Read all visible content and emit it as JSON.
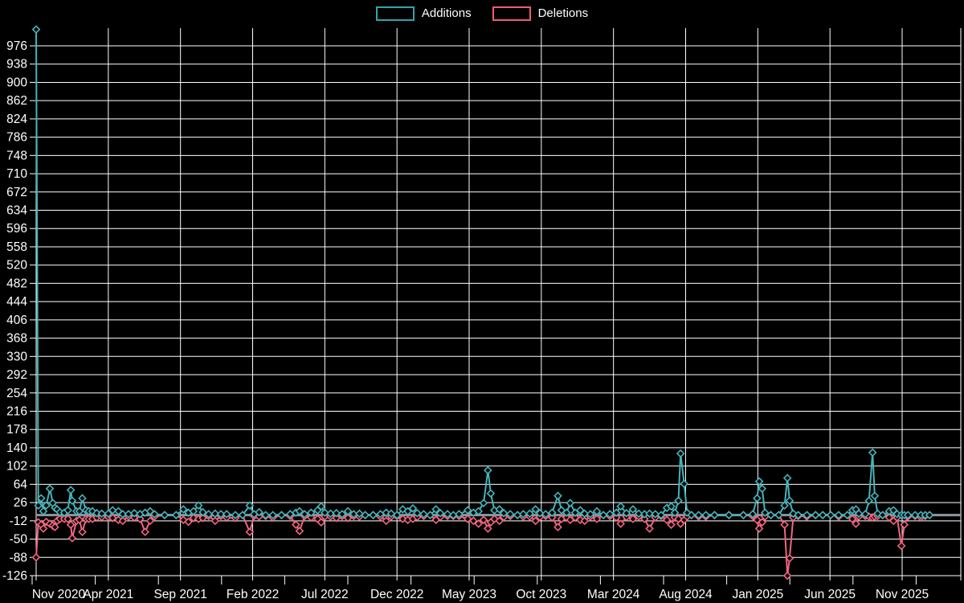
{
  "legend": {
    "items": [
      {
        "label": "Additions",
        "color": "#2fa6ac"
      },
      {
        "label": "Deletions",
        "color": "#ee5b74"
      }
    ]
  },
  "chart_data": {
    "type": "line",
    "title": "",
    "legend_position": "top-center",
    "grid": true,
    "background": "#000000",
    "grid_color": "#ffffff",
    "axis_color": "#8a98a3",
    "text_color": "#ffffff",
    "series": [
      {
        "name": "Additions",
        "color": "#45b4ba",
        "marker": "diamond"
      },
      {
        "name": "Deletions",
        "color": "#f1657f",
        "marker": "diamond"
      }
    ],
    "y_ticks": [
      976,
      938,
      900,
      862,
      824,
      786,
      748,
      710,
      672,
      634,
      596,
      558,
      520,
      482,
      444,
      406,
      368,
      330,
      292,
      254,
      216,
      178,
      140,
      102,
      64,
      26,
      -12,
      -50,
      -88,
      -126
    ],
    "ylim": [
      -145,
      1013
    ],
    "x_ticks": [
      {
        "label": "Nov 2020",
        "m": 0
      },
      {
        "label": "Apr 2021",
        "m": 5
      },
      {
        "label": "Sep 2021",
        "m": 10
      },
      {
        "label": "Feb 2022",
        "m": 15
      },
      {
        "label": "Jul 2022",
        "m": 20
      },
      {
        "label": "Dec 2022",
        "m": 25
      },
      {
        "label": "May 2023",
        "m": 30
      },
      {
        "label": "Oct 2023",
        "m": 35
      },
      {
        "label": "Mar 2024",
        "m": 40
      },
      {
        "label": "Aug 2024",
        "m": 45
      },
      {
        "label": "Jan 2025",
        "m": 50
      },
      {
        "label": "Jun 2025",
        "m": 55
      },
      {
        "label": "Nov 2025",
        "m": 60
      }
    ],
    "points_format": [
      "months_since_nov_2020",
      "additions",
      "deletions"
    ],
    "points": [
      [
        0,
        1010,
        -88
      ],
      [
        0.15,
        20,
        -15
      ],
      [
        0.35,
        35,
        -20
      ],
      [
        0.5,
        8,
        -28
      ],
      [
        0.7,
        20,
        -14
      ],
      [
        0.95,
        55,
        -18
      ],
      [
        1.15,
        25,
        -22
      ],
      [
        1.3,
        15,
        -25
      ],
      [
        1.45,
        12,
        -12
      ],
      [
        1.65,
        6,
        -8
      ],
      [
        1.95,
        5,
        -8
      ],
      [
        2.2,
        10,
        -8
      ],
      [
        2.4,
        52,
        -20
      ],
      [
        2.5,
        30,
        -48
      ],
      [
        2.8,
        8,
        -12
      ],
      [
        3.0,
        8,
        -10
      ],
      [
        3.2,
        35,
        -35
      ],
      [
        3.45,
        10,
        -8
      ],
      [
        3.65,
        8,
        -8
      ],
      [
        3.9,
        8,
        -8
      ],
      [
        4.2,
        4,
        -5
      ],
      [
        4.55,
        3,
        -4
      ],
      [
        5.0,
        3,
        -4
      ],
      [
        5.3,
        10,
        -6
      ],
      [
        5.7,
        8,
        -10
      ],
      [
        6.0,
        2,
        -12
      ],
      [
        6.4,
        2,
        -3
      ],
      [
        6.8,
        4,
        -5
      ],
      [
        7.2,
        2,
        -8
      ],
      [
        7.55,
        5,
        -35
      ],
      [
        7.9,
        8,
        -12
      ],
      [
        8.2,
        2,
        -3
      ],
      [
        8.9,
        0,
        0
      ],
      [
        9.7,
        0,
        0
      ],
      [
        10.2,
        12,
        -10
      ],
      [
        10.55,
        5,
        -14
      ],
      [
        10.9,
        8,
        -6
      ],
      [
        11.25,
        20,
        -8
      ],
      [
        11.55,
        6,
        -6
      ],
      [
        11.95,
        2,
        -2
      ],
      [
        12.4,
        3,
        -12
      ],
      [
        12.8,
        2,
        -2
      ],
      [
        13.2,
        2,
        -5
      ],
      [
        13.8,
        0,
        -6
      ],
      [
        14.3,
        0,
        0
      ],
      [
        14.8,
        20,
        -35
      ],
      [
        15.1,
        2,
        -2
      ],
      [
        15.45,
        6,
        -3
      ],
      [
        15.9,
        0,
        -2
      ],
      [
        16.4,
        0,
        -5
      ],
      [
        17.0,
        0,
        0
      ],
      [
        17.6,
        2,
        -2
      ],
      [
        18.0,
        5,
        -20
      ],
      [
        18.25,
        8,
        -33
      ],
      [
        18.6,
        2,
        -2
      ],
      [
        19.05,
        5,
        -5
      ],
      [
        19.5,
        10,
        -8
      ],
      [
        19.75,
        18,
        -15
      ],
      [
        20.0,
        5,
        -3
      ],
      [
        20.4,
        3,
        -3
      ],
      [
        20.8,
        4,
        -6
      ],
      [
        21.2,
        2,
        -2
      ],
      [
        21.6,
        8,
        -6
      ],
      [
        22.0,
        2,
        -2
      ],
      [
        22.4,
        3,
        -3
      ],
      [
        22.8,
        0,
        0
      ],
      [
        23.35,
        0,
        0
      ],
      [
        23.85,
        2,
        -3
      ],
      [
        24.25,
        5,
        -12
      ],
      [
        24.6,
        3,
        -3
      ],
      [
        25.0,
        0,
        -2
      ],
      [
        25.4,
        12,
        -8
      ],
      [
        25.75,
        8,
        -10
      ],
      [
        26.1,
        14,
        -8
      ],
      [
        26.4,
        4,
        -4
      ],
      [
        26.85,
        2,
        -2
      ],
      [
        27.3,
        0,
        0
      ],
      [
        27.7,
        12,
        -10
      ],
      [
        28.0,
        4,
        -4
      ],
      [
        28.5,
        2,
        -2
      ],
      [
        28.9,
        0,
        -2
      ],
      [
        29.3,
        2,
        -2
      ],
      [
        29.9,
        10,
        -8
      ],
      [
        30.3,
        5,
        -12
      ],
      [
        30.65,
        8,
        -18
      ],
      [
        31.0,
        25,
        -10
      ],
      [
        31.3,
        93,
        -28
      ],
      [
        31.5,
        45,
        -15
      ],
      [
        31.75,
        10,
        -8
      ],
      [
        32.1,
        12,
        -12
      ],
      [
        32.4,
        4,
        -4
      ],
      [
        32.85,
        2,
        -2
      ],
      [
        33.35,
        0,
        0
      ],
      [
        33.75,
        2,
        -3
      ],
      [
        34.2,
        3,
        -3
      ],
      [
        34.6,
        12,
        -12
      ],
      [
        34.9,
        4,
        -4
      ],
      [
        35.3,
        2,
        -2
      ],
      [
        35.75,
        5,
        -5
      ],
      [
        36.15,
        40,
        -25
      ],
      [
        36.4,
        10,
        -8
      ],
      [
        36.75,
        5,
        -5
      ],
      [
        37.0,
        25,
        -10
      ],
      [
        37.35,
        5,
        -5
      ],
      [
        37.7,
        10,
        -10
      ],
      [
        38.0,
        3,
        -12
      ],
      [
        38.4,
        2,
        -3
      ],
      [
        38.85,
        8,
        -8
      ],
      [
        39.3,
        0,
        0
      ],
      [
        39.75,
        2,
        -2
      ],
      [
        40.2,
        5,
        -5
      ],
      [
        40.5,
        18,
        -18
      ],
      [
        40.9,
        4,
        -4
      ],
      [
        41.35,
        12,
        -8
      ],
      [
        41.75,
        3,
        -3
      ],
      [
        42.15,
        2,
        -8
      ],
      [
        42.5,
        3,
        -28
      ],
      [
        42.9,
        2,
        -5
      ],
      [
        43.3,
        0,
        -2
      ],
      [
        43.7,
        15,
        -10
      ],
      [
        44.0,
        18,
        -20
      ],
      [
        44.25,
        5,
        -5
      ],
      [
        44.5,
        30,
        -8
      ],
      [
        44.65,
        128,
        -18
      ],
      [
        44.9,
        65,
        -10
      ],
      [
        45.1,
        5,
        -3
      ],
      [
        45.4,
        0,
        0
      ],
      [
        45.9,
        0,
        -3
      ],
      [
        46.4,
        0,
        -3
      ],
      [
        47.0,
        0,
        0
      ],
      [
        48.0,
        0,
        0
      ],
      [
        49.0,
        0,
        0
      ],
      [
        49.65,
        2,
        -2
      ],
      [
        49.95,
        35,
        -10
      ],
      [
        50.1,
        70,
        -28
      ],
      [
        50.3,
        55,
        -15
      ],
      [
        50.5,
        5,
        -3
      ],
      [
        50.9,
        0,
        0
      ],
      [
        51.45,
        0,
        0
      ],
      [
        51.85,
        20,
        -20
      ],
      [
        52.05,
        77,
        -126
      ],
      [
        52.2,
        30,
        -90
      ],
      [
        52.45,
        3,
        -5
      ],
      [
        52.8,
        0,
        -2
      ],
      [
        53.4,
        0,
        -3
      ],
      [
        54.0,
        0,
        0
      ],
      [
        54.5,
        0,
        0
      ],
      [
        55.05,
        0,
        0
      ],
      [
        55.6,
        0,
        -3
      ],
      [
        56.2,
        0,
        0
      ],
      [
        56.55,
        10,
        -8
      ],
      [
        56.8,
        12,
        -18
      ],
      [
        57.0,
        3,
        -3
      ],
      [
        57.45,
        2,
        -2
      ],
      [
        57.7,
        30,
        -3
      ],
      [
        57.95,
        130,
        -5
      ],
      [
        58.1,
        40,
        -3
      ],
      [
        58.3,
        3,
        -2
      ],
      [
        58.65,
        0,
        0
      ],
      [
        59.1,
        8,
        -5
      ],
      [
        59.4,
        10,
        -12
      ],
      [
        59.65,
        2,
        -5
      ],
      [
        59.95,
        0,
        -64
      ],
      [
        60.15,
        0,
        -20
      ],
      [
        60.4,
        0,
        -3
      ],
      [
        60.9,
        0,
        -2
      ],
      [
        61.3,
        0,
        -5
      ],
      [
        61.6,
        0,
        -2
      ],
      [
        61.9,
        0,
        0
      ]
    ]
  }
}
